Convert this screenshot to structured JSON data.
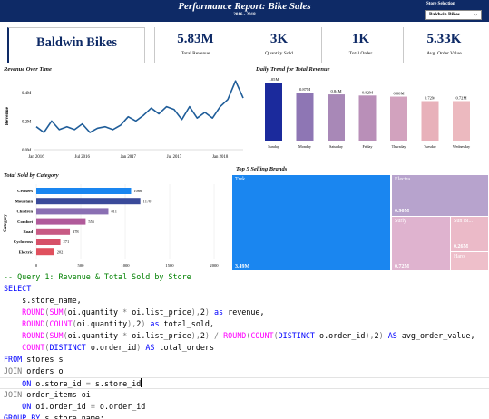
{
  "header": {
    "title": "Performance Report: Bike Sales",
    "subtitle": "2016 - 2018",
    "store_selection_label": "Store Selection",
    "store_selection_value": "Baldwin Bikes"
  },
  "kpis": {
    "store_name": "Baldwin Bikes",
    "total_revenue": {
      "value": "5.83M",
      "label": "Total Revenue"
    },
    "quantity_sold": {
      "value": "3K",
      "label": "Quantity Sold"
    },
    "total_order": {
      "value": "1K",
      "label": "Total Order"
    },
    "avg_order_value": {
      "value": "5.33K",
      "label": "Avg. Order Value"
    }
  },
  "colors": {
    "navy": "#0e2a66",
    "line": "#1f5d99",
    "treemap_blue": "#1a86f0"
  },
  "chart_data": [
    {
      "type": "line",
      "title": "Revenue Over Time",
      "xlabel": "",
      "ylabel": "Revenue",
      "x_tick_labels": [
        "Jan 2016",
        "Jul 2016",
        "Jan 2017",
        "Jul 2017",
        "Jan 2018"
      ],
      "y_tick_labels": [
        "0.0M",
        "0.2M",
        "0.4M"
      ],
      "ylim": [
        0,
        0.5
      ],
      "x": [
        "2016-01",
        "2016-02",
        "2016-03",
        "2016-04",
        "2016-05",
        "2016-06",
        "2016-07",
        "2016-08",
        "2016-09",
        "2016-10",
        "2016-11",
        "2016-12",
        "2017-01",
        "2017-02",
        "2017-03",
        "2017-04",
        "2017-05",
        "2017-06",
        "2017-07",
        "2017-08",
        "2017-09",
        "2017-10",
        "2017-11",
        "2017-12",
        "2018-01",
        "2018-02",
        "2018-03",
        "2018-04"
      ],
      "values": [
        0.16,
        0.12,
        0.2,
        0.14,
        0.16,
        0.14,
        0.18,
        0.12,
        0.15,
        0.16,
        0.14,
        0.17,
        0.23,
        0.2,
        0.24,
        0.29,
        0.25,
        0.3,
        0.28,
        0.21,
        0.3,
        0.22,
        0.26,
        0.22,
        0.3,
        0.35,
        0.48,
        0.36
      ]
    },
    {
      "type": "bar",
      "title": "Daily Trend for Total Revenue",
      "categories": [
        "Sunday",
        "Monday",
        "Saturday",
        "Friday",
        "Thursday",
        "Tuesday",
        "Wednesday"
      ],
      "values": [
        1.05,
        0.87,
        0.84,
        0.82,
        0.8,
        0.72,
        0.72
      ],
      "data_labels": [
        "1.05M",
        "0.87M",
        "0.84M",
        "0.82M",
        "0.80M",
        "0.72M",
        "0.72M"
      ],
      "colors": [
        "#1b2a9c",
        "#8e76b4",
        "#a888b7",
        "#b98fb8",
        "#d2a2be",
        "#e8b1ba",
        "#ecb9bf"
      ],
      "ylim": [
        0,
        1.1
      ]
    },
    {
      "type": "bar",
      "orientation": "horizontal",
      "title": "Total Sold by Category",
      "ylabel": "Category",
      "categories": [
        "Cruisers",
        "Mountain",
        "Children",
        "Comfort",
        "Road",
        "Cyclocross",
        "Electric"
      ],
      "values": [
        1066,
        1170,
        811,
        555,
        378,
        271,
        202
      ],
      "data_labels": [
        "1066",
        "1170",
        "811",
        "555",
        "378",
        "271",
        "202"
      ],
      "colors": [
        "#1a86f0",
        "#3a4a9a",
        "#8a6fb3",
        "#b05a9a",
        "#c75a84",
        "#d65068",
        "#e0505e"
      ],
      "x_tick_labels": [
        "0",
        "500",
        "1000",
        "1500",
        "2000"
      ],
      "xlim": [
        0,
        2000
      ]
    },
    {
      "type": "treemap",
      "title": "Top 5 Selling Brands",
      "categories": [
        "Trek",
        "Electra",
        "Surly",
        "Sun Bi...",
        "Haro"
      ],
      "data_labels": [
        "3.49M",
        "0.90M",
        "0.72M",
        "0.26M",
        ""
      ],
      "values": [
        3.49,
        0.9,
        0.72,
        0.26,
        0.18
      ],
      "colors": [
        "#1a86f0",
        "#b7a3cd",
        "#dfb3cf",
        "#ebbac8",
        "#eebfca"
      ]
    }
  ],
  "code": {
    "lines": [
      "-- Query 1: Revenue & Total Sold by Store",
      "SELECT",
      "    s.store_name,",
      "    ROUND(SUM(oi.quantity * oi.list_price),2) as revenue,",
      "    ROUND(COUNT(oi.quantity),2) as total_sold,",
      "    ROUND(SUM(oi.quantity * oi.list_price),2) / ROUND(COUNT(DISTINCT o.order_id),2) AS avg_order_value,",
      "    COUNT(DISTINCT o.order_id) AS total_orders",
      "FROM stores s",
      "JOIN orders o",
      "    ON o.store_id = s.store_id",
      "JOIN order_items oi",
      "    ON oi.order_id = o.order_id",
      "GROUP BY s.store_name;"
    ]
  }
}
